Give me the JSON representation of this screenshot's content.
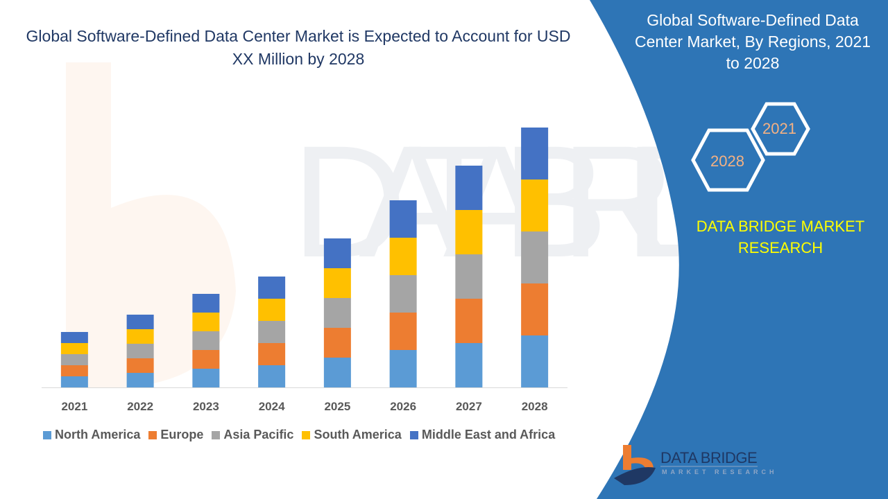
{
  "header": {
    "title": "Global Software-Defined Data Center Market is Expected to Account for USD XX Million by 2028"
  },
  "side_panel": {
    "title": "Global Software-Defined Data Center Market, By Regions, 2021 to 2028",
    "hex_start": "2021",
    "hex_end": "2028",
    "brand": "DATA BRIDGE MARKET RESEARCH",
    "logo_text": "DATA BRIDGE",
    "logo_subtext": "MARKET RESEARCH",
    "panel_color": "#2e75b6"
  },
  "chart_data": {
    "type": "bar",
    "stacked": true,
    "title": "Global Software-Defined Data Center Market is Expected to Account for USD XX Million by 2028",
    "categories": [
      "2021",
      "2022",
      "2023",
      "2024",
      "2025",
      "2026",
      "2027",
      "2028"
    ],
    "series": [
      {
        "name": "North America",
        "color": "#5b9bd5",
        "values": [
          16,
          21,
          27,
          32,
          43,
          54,
          64,
          75
        ]
      },
      {
        "name": "Europe",
        "color": "#ed7d31",
        "values": [
          16,
          21,
          27,
          32,
          43,
          54,
          64,
          75
        ]
      },
      {
        "name": "Asia Pacific",
        "color": "#a5a5a5",
        "values": [
          16,
          21,
          27,
          32,
          43,
          54,
          64,
          75
        ]
      },
      {
        "name": "South America",
        "color": "#ffc000",
        "values": [
          16,
          21,
          27,
          32,
          43,
          54,
          64,
          75
        ]
      },
      {
        "name": "Middle East and Africa",
        "color": "#4472c4",
        "values": [
          16,
          21,
          27,
          32,
          43,
          54,
          64,
          75
        ]
      }
    ],
    "xlabel": "",
    "ylabel": "",
    "y_axis_visible": false,
    "grid": false,
    "legend_position": "bottom"
  }
}
